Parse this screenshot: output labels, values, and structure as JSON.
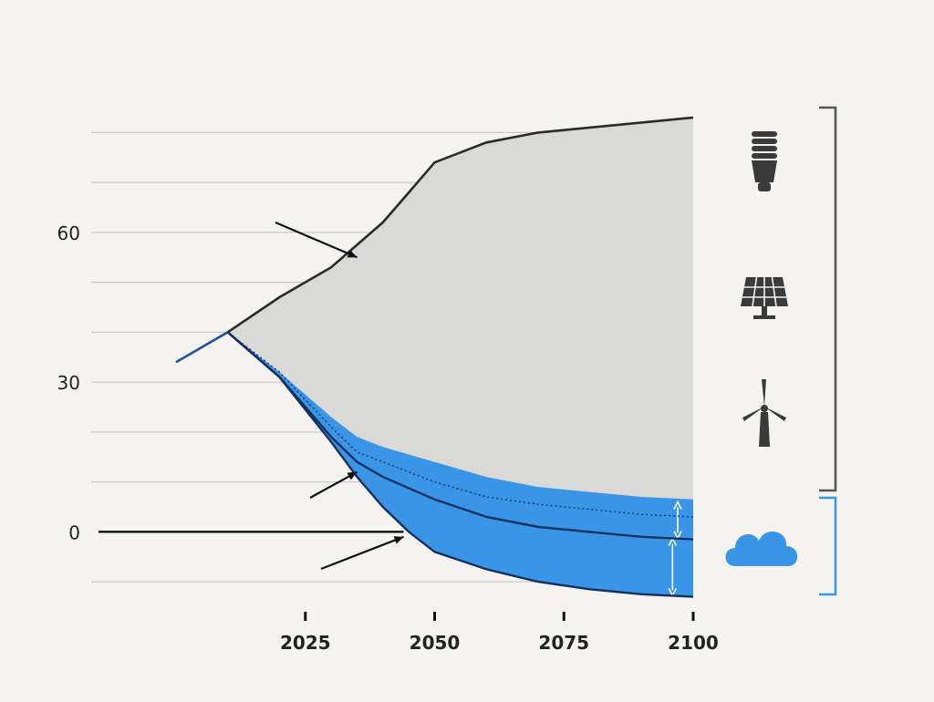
{
  "colors": {
    "background": "#f4f3f0",
    "bau_fill": "#d9d9d7",
    "mitigation_fill": "#3a95e6",
    "dark_line": "#13305f",
    "historic_line": "#1f4fa0",
    "bau_line": "#2a2a2a",
    "removal_accent": "#3a95e6",
    "bracket_dark": "#444444",
    "icon_dark": "#3a3a3a"
  },
  "chart_data": {
    "type": "area",
    "x_unit": "year",
    "xlim": [
      1985,
      2100
    ],
    "ylim": [
      -14,
      85
    ],
    "xticks": [
      2025,
      2050,
      2075,
      2100
    ],
    "yticks": [
      0,
      30,
      60
    ],
    "grid": "horizontal",
    "series": [
      {
        "name": "historical",
        "x": [
          2000,
          2010
        ],
        "y": [
          34,
          40
        ]
      },
      {
        "name": "business_as_usual",
        "x": [
          2010,
          2020,
          2030,
          2040,
          2045,
          2050,
          2060,
          2070,
          2080,
          2090,
          2100
        ],
        "y": [
          40,
          47,
          53,
          62,
          68,
          74,
          78,
          80,
          81,
          82,
          83
        ]
      },
      {
        "name": "path_2C_upper_edge",
        "x": [
          2010,
          2020,
          2030,
          2035,
          2040,
          2050,
          2060,
          2070,
          2080,
          2090,
          2100
        ],
        "y": [
          40,
          32,
          23,
          19,
          17,
          14,
          11,
          9,
          8,
          7,
          6.5
        ]
      },
      {
        "name": "path_2C_dotted",
        "x": [
          2010,
          2020,
          2030,
          2035,
          2040,
          2050,
          2060,
          2070,
          2080,
          2090,
          2100
        ],
        "y": [
          40,
          32,
          21,
          16,
          14,
          10,
          7,
          5.5,
          4.5,
          3.5,
          3
        ]
      },
      {
        "name": "path_2C_net",
        "x": [
          2010,
          2020,
          2030,
          2035,
          2040,
          2050,
          2060,
          2070,
          2080,
          2090,
          2100
        ],
        "y": [
          40,
          31,
          19,
          14,
          11,
          6.5,
          3,
          1,
          0,
          -1,
          -1.5
        ]
      },
      {
        "name": "path_1_5C",
        "x": [
          2010,
          2020,
          2030,
          2035,
          2040,
          2045,
          2050,
          2060,
          2070,
          2080,
          2090,
          2100
        ],
        "y": [
          40,
          31,
          18,
          11,
          5,
          0,
          -4,
          -7.5,
          -10,
          -11.5,
          -12.5,
          -13
        ]
      }
    ],
    "annotations": [
      {
        "id": "bau",
        "lines": [
          "",
          ""
        ],
        "arrow_to": [
          2035,
          55
        ]
      },
      {
        "id": "two",
        "line": "",
        "arrow_to": [
          2035,
          12
        ]
      },
      {
        "id": "onefive",
        "line": "",
        "arrow_to": [
          2044,
          -1
        ]
      }
    ],
    "side_labels": {
      "mitigation": [
        "",
        ""
      ],
      "removal": [
        "",
        ""
      ]
    },
    "icons": [
      "cfl-bulb-icon",
      "solar-panel-icon",
      "wind-turbine-icon",
      "co2-cloud-icon"
    ]
  }
}
